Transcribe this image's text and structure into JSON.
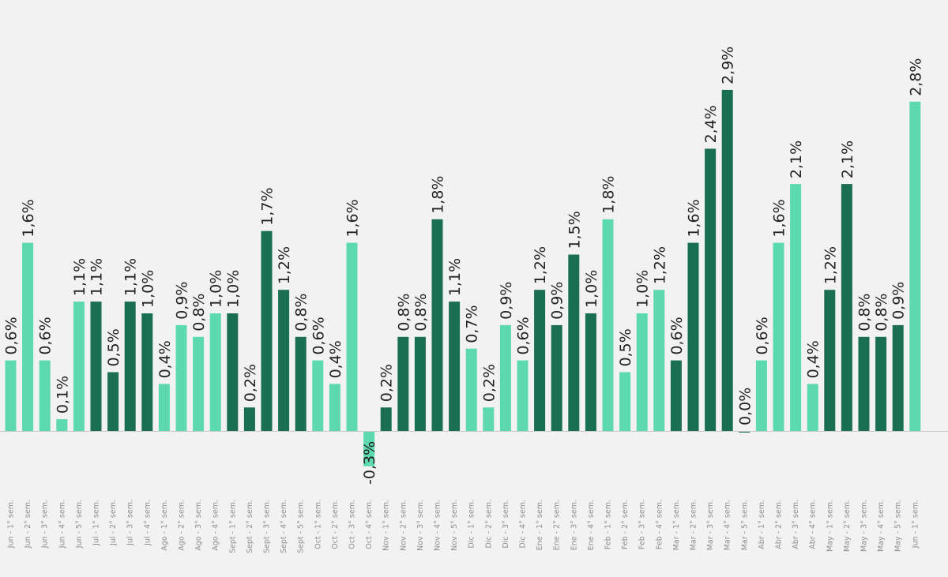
{
  "colors": {
    "background": "#f2f2f2",
    "dark": "#1a6e52",
    "light": "#5dd9b0",
    "axis": "#c9c9c9",
    "label": "#222222",
    "category_text": "#8f8f8f"
  },
  "chart_data": {
    "type": "bar",
    "title": "",
    "xlabel": "",
    "ylabel": "",
    "ylim": [
      -0.3,
      2.9
    ],
    "grid": false,
    "categories": [
      "Jun - 1° sem.",
      "Jun - 2° sem.",
      "Jun - 3° sem.",
      "Jun - 4° sem.",
      "Jun - 5° sem.",
      "Jul - 1° sem.",
      "Jul - 2° sem.",
      "Jul - 3° sem.",
      "Jul - 4° sem.",
      "Ago - 1° sem.",
      "Ago - 2° sem.",
      "Ago - 3° sem.",
      "Ago - 4° sem.",
      "Sept - 1° sem.",
      "Sept - 2° sem.",
      "Sept - 3° sem.",
      "Sept - 4° sem.",
      "Sept - 5° sem.",
      "Oct - 1° sem.",
      "Oct - 2° sem.",
      "Oct - 3° sem.",
      "Oct - 4° sem.",
      "Nov - 1° sem.",
      "Nov - 2° sem.",
      "Nov - 3° sem.",
      "Nov - 4° sem.",
      "Nov - 5° sem.",
      "Dic - 1° sem.",
      "Dic - 2° sem.",
      "Dic - 3° sem.",
      "Dic - 4° sem.",
      "Ene - 1° sem.",
      "Ene - 2° sem.",
      "Ene - 3° sem.",
      "Ene - 4° sem.",
      "Feb - 1° sem.",
      "Feb - 2° sem.",
      "Feb - 3° sem.",
      "Feb - 4° sem.",
      "Mar - 1° sem.",
      "Mar - 2° sem.",
      "Mar - 3° sem.",
      "Mar - 4° sem.",
      "Mar - 5° sem.",
      "Abr - 1° sem.",
      "Abr - 2° sem.",
      "Abr - 3° sem.",
      "Abr - 4° sem.",
      "May - 1° sem.",
      "May - 2° sem.",
      "May - 3° sem.",
      "May - 4° sem.",
      "May - 5° sem.",
      "Jun - 1° sem."
    ],
    "values": [
      0.6,
      1.6,
      0.6,
      0.1,
      1.1,
      1.1,
      0.5,
      1.1,
      1.0,
      0.4,
      0.9,
      0.8,
      1.0,
      1.0,
      0.2,
      1.7,
      1.2,
      0.8,
      0.6,
      0.4,
      1.6,
      -0.3,
      0.2,
      0.8,
      0.8,
      1.8,
      1.1,
      0.7,
      0.2,
      0.9,
      0.6,
      1.2,
      0.9,
      1.5,
      1.0,
      1.8,
      0.5,
      1.0,
      1.2,
      0.6,
      1.6,
      2.4,
      2.9,
      0.0,
      0.6,
      1.6,
      2.1,
      0.4,
      1.2,
      2.1,
      0.8,
      0.8,
      0.9,
      2.8
    ],
    "labels": [
      "0,6%",
      "1,6%",
      "0,6%",
      "0,1%",
      "1,1%",
      "1,1%",
      "0,5%",
      "1,1%",
      "1,0%",
      "0,4%",
      "0,9%",
      "0,8%",
      "1,0%",
      "1,0%",
      "0,2%",
      "1,7%",
      "1,2%",
      "0,8%",
      "0,6%",
      "0,4%",
      "1,6%",
      "-0,3%",
      "0,2%",
      "0,8%",
      "0,8%",
      "1,8%",
      "1,1%",
      "0,7%",
      "0,2%",
      "0,9%",
      "0,6%",
      "1,2%",
      "0,9%",
      "1,5%",
      "1,0%",
      "1,8%",
      "0,5%",
      "1,0%",
      "1,2%",
      "0,6%",
      "1,6%",
      "2,4%",
      "2,9%",
      "0,0%",
      "0,6%",
      "1,6%",
      "2,1%",
      "0,4%",
      "1,2%",
      "2,1%",
      "0,8%",
      "0,8%",
      "0,9%",
      "2,8%"
    ],
    "bar_color_keys": [
      "light",
      "light",
      "light",
      "light",
      "light",
      "dark",
      "dark",
      "dark",
      "dark",
      "light",
      "light",
      "light",
      "light",
      "dark",
      "dark",
      "dark",
      "dark",
      "dark",
      "light",
      "light",
      "light",
      "light",
      "dark",
      "dark",
      "dark",
      "dark",
      "dark",
      "light",
      "light",
      "light",
      "light",
      "dark",
      "dark",
      "dark",
      "dark",
      "light",
      "light",
      "light",
      "light",
      "dark",
      "dark",
      "dark",
      "dark",
      "dark",
      "light",
      "light",
      "light",
      "light",
      "dark",
      "dark",
      "dark",
      "dark",
      "dark",
      "light"
    ]
  }
}
